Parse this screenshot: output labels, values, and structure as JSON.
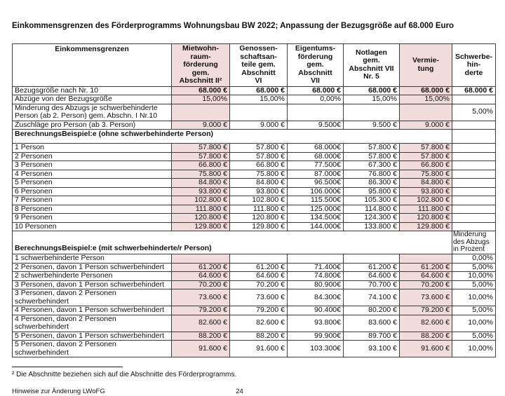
{
  "title": "Einkommensgrenzen des Förderprogramms Wohnungsbau BW 2022; Anpassung der Bezugsgröße auf 68.000 Euro",
  "colors": {
    "highlight": "#F2DCDB",
    "border": "#3d3d3d"
  },
  "table": {
    "columns": [
      {
        "label": "Einkommensgrenzen",
        "highlight": false
      },
      {
        "label": "Mietwohn-\nraum-\nförderung\ngem.\nAbschnitt II²",
        "highlight": true
      },
      {
        "label": "Genossen-\nschaftsan-\nteile gem.\nAbschnitt\nVI",
        "highlight": false
      },
      {
        "label": "Eigentums-\nförderung\ngem.\nAbschnitt\nVII",
        "highlight": false
      },
      {
        "label": "Notlagen\ngem.\nAbschnitt VII\nNr. 5",
        "highlight": false
      },
      {
        "label": "Vermie-\ntung",
        "highlight": true
      },
      {
        "label": "Schwerbe-\nhin-\nderte",
        "highlight": false
      }
    ],
    "top_rows": [
      {
        "label": "Bezugsgröße nach Nr. 10",
        "values": [
          "68.000 €",
          "68.000 €",
          "68.000 €",
          "68.000 €",
          "68.000 €",
          "68.000 €"
        ],
        "bold": true
      },
      {
        "label": "Abzüge von der Bezugsgröße",
        "values": [
          "15,00%",
          "15,00%",
          "0,00%",
          "15,00%",
          "15,00%",
          ""
        ]
      },
      {
        "label": "Minderung des Abzugs je schwerbehinderte Person (ab 2. Person) gem. Abschn. I Nr.10",
        "values": [
          "",
          "",
          "",
          "",
          "",
          "5,00%"
        ]
      },
      {
        "label": "Zuschläge pro Person (ab 3. Person)",
        "values": [
          "9.000 €",
          "9.000 €",
          "9.500€",
          "9.500 €",
          "9.000 €",
          ""
        ]
      }
    ],
    "section1": {
      "header": "BerechnungsBeispiel:e (ohne schwerbehinderte Person)",
      "rows": [
        {
          "label": "1  Person",
          "values": [
            "57.800 €",
            "57.800 €",
            "68.000€",
            "57.800 €",
            "57.800 €",
            ""
          ]
        },
        {
          "label": "2 Personen",
          "values": [
            "57.800 €",
            "57.800 €",
            "68.000€",
            "57.800 €",
            "57.800 €",
            ""
          ]
        },
        {
          "label": "3 Personen",
          "values": [
            "66.800 €",
            "66.800 €",
            "77.500€",
            "67.300 €",
            "66.800 €",
            ""
          ]
        },
        {
          "label": "4 Personen",
          "values": [
            "75.800 €",
            "75.800 €",
            "87.000€",
            "76.800 €",
            "75.800 €",
            ""
          ]
        },
        {
          "label": "5 Personen",
          "values": [
            "84.800 €",
            "84.800 €",
            "96.500€",
            "86.300 €",
            "84.800 €",
            ""
          ]
        },
        {
          "label": "6 Personen",
          "values": [
            "93.800 €",
            "93.800 €",
            "106.000€",
            "95.800 €",
            "93.800 €",
            ""
          ]
        },
        {
          "label": "7 Personen",
          "values": [
            "102.800 €",
            "102.800 €",
            "115.500€",
            "105.300 €",
            "102.800 €",
            ""
          ]
        },
        {
          "label": "8 Personen",
          "values": [
            "111.800 €",
            "111.800 €",
            "125.000€",
            "114.800 €",
            "111.800 €",
            ""
          ]
        },
        {
          "label": "9 Personen",
          "values": [
            "120.800 €",
            "120.800 €",
            "134.500€",
            "124.300 €",
            "120.800 €",
            ""
          ]
        },
        {
          "label": "10 Personen",
          "values": [
            "129.800 €",
            "129.800 €",
            "144.000€",
            "133.800 €",
            "129.800 €",
            ""
          ]
        }
      ]
    },
    "section2": {
      "header": "BerechnungsBeispiel:e (mit schwerbehinderte/r Person)",
      "last_col_note": "Minderung\ndes Abzugs\nin Prozent",
      "rows": [
        {
          "label": "1 schwerbehinderte Person",
          "values": [
            "",
            "",
            "",
            "",
            "",
            "0,00%"
          ]
        },
        {
          "label": "2 Personen, davon 1 Person schwerbehindert",
          "values": [
            "61.200 €",
            "61.200 €",
            "71.400€",
            "61.200 €",
            "61.200 €",
            "5,00%"
          ]
        },
        {
          "label": "2 schwerbehinderte Personen",
          "values": [
            "64.600 €",
            "64.600 €",
            "74.800€",
            "64.600 €",
            "64.600 €",
            "10,00%"
          ]
        },
        {
          "label": "3 Personen, davon 1 Person schwerbehindert",
          "values": [
            "70.200 €",
            "70.200 €",
            "80.900€",
            "70.700 €",
            "70.200 €",
            "5,00%"
          ]
        },
        {
          "label": "3 Personen, davon 2 Personen schwerbehindert",
          "values": [
            "73.600 €",
            "73.600 €",
            "84.300€",
            "74.100 €",
            "73.600 €",
            "10,00%"
          ]
        },
        {
          "label": "4 Personen, davon 1 Person schwerbehindert",
          "values": [
            "79.200 €",
            "79.200 €",
            "90.400€",
            "80.200 €",
            "79.200 €",
            "5,00%"
          ]
        },
        {
          "label": "4 Personen, davon 2 Personen schwerbehindert",
          "values": [
            "82.600 €",
            "82.600 €",
            "93.800€",
            "83.600 €",
            "82.600 €",
            "10,00%"
          ]
        },
        {
          "label": "5 Personen, davon 1 Person schwerbehindert",
          "values": [
            "88.200 €",
            "88.200 €",
            "99.900€",
            "89.700 €",
            "88.200 €",
            "5,00%"
          ]
        },
        {
          "label": "5 Personen, davon 2 Personen schwerbehindert",
          "values": [
            "91.600 €",
            "91.600 €",
            "103.300€",
            "93.100 €",
            "91.600 €",
            "10,00%"
          ]
        }
      ]
    }
  },
  "footnote": "² Die Abschnitte beziehen sich auf die Abschnitte des Förderprogramms.",
  "footer": {
    "left": "Hinweise zur Änderung LWoFG",
    "page": "24"
  }
}
